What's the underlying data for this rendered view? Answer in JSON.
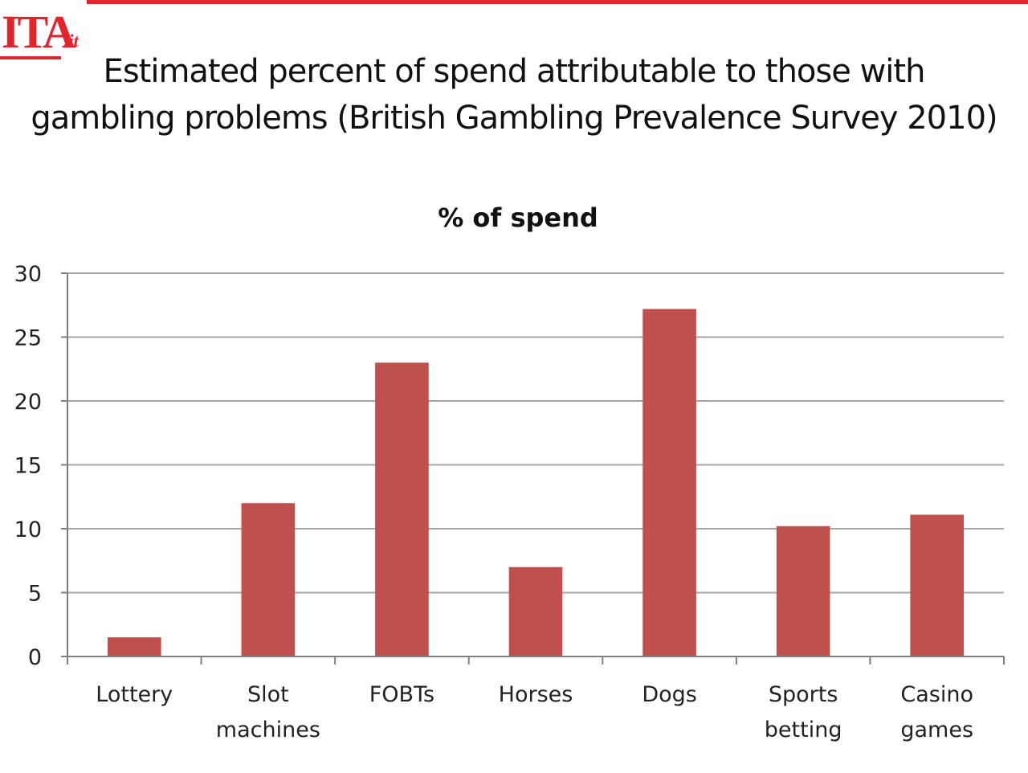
{
  "logo": {
    "text": "ITA",
    "suffix": ".it"
  },
  "title": {
    "line1": "Estimated percent of spend attributable to those with",
    "line2": "gambling problems (British Gambling Prevalence Survey 2010)"
  },
  "chart_data": {
    "type": "bar",
    "title": "% of spend",
    "categories": [
      [
        "Lottery"
      ],
      [
        "Slot",
        "machines"
      ],
      [
        "FOBTs"
      ],
      [
        "Horses"
      ],
      [
        "Dogs"
      ],
      [
        "Sports",
        "betting"
      ],
      [
        "Casino",
        "games"
      ]
    ],
    "values": [
      1.5,
      12,
      23,
      7,
      27.2,
      10.2,
      11.1
    ],
    "ylim": [
      0,
      30
    ],
    "yticks": [
      0,
      5,
      10,
      15,
      20,
      25,
      30
    ],
    "grid": true,
    "bar_color": "#c0504d",
    "grid_color": "#a6a6a6"
  }
}
